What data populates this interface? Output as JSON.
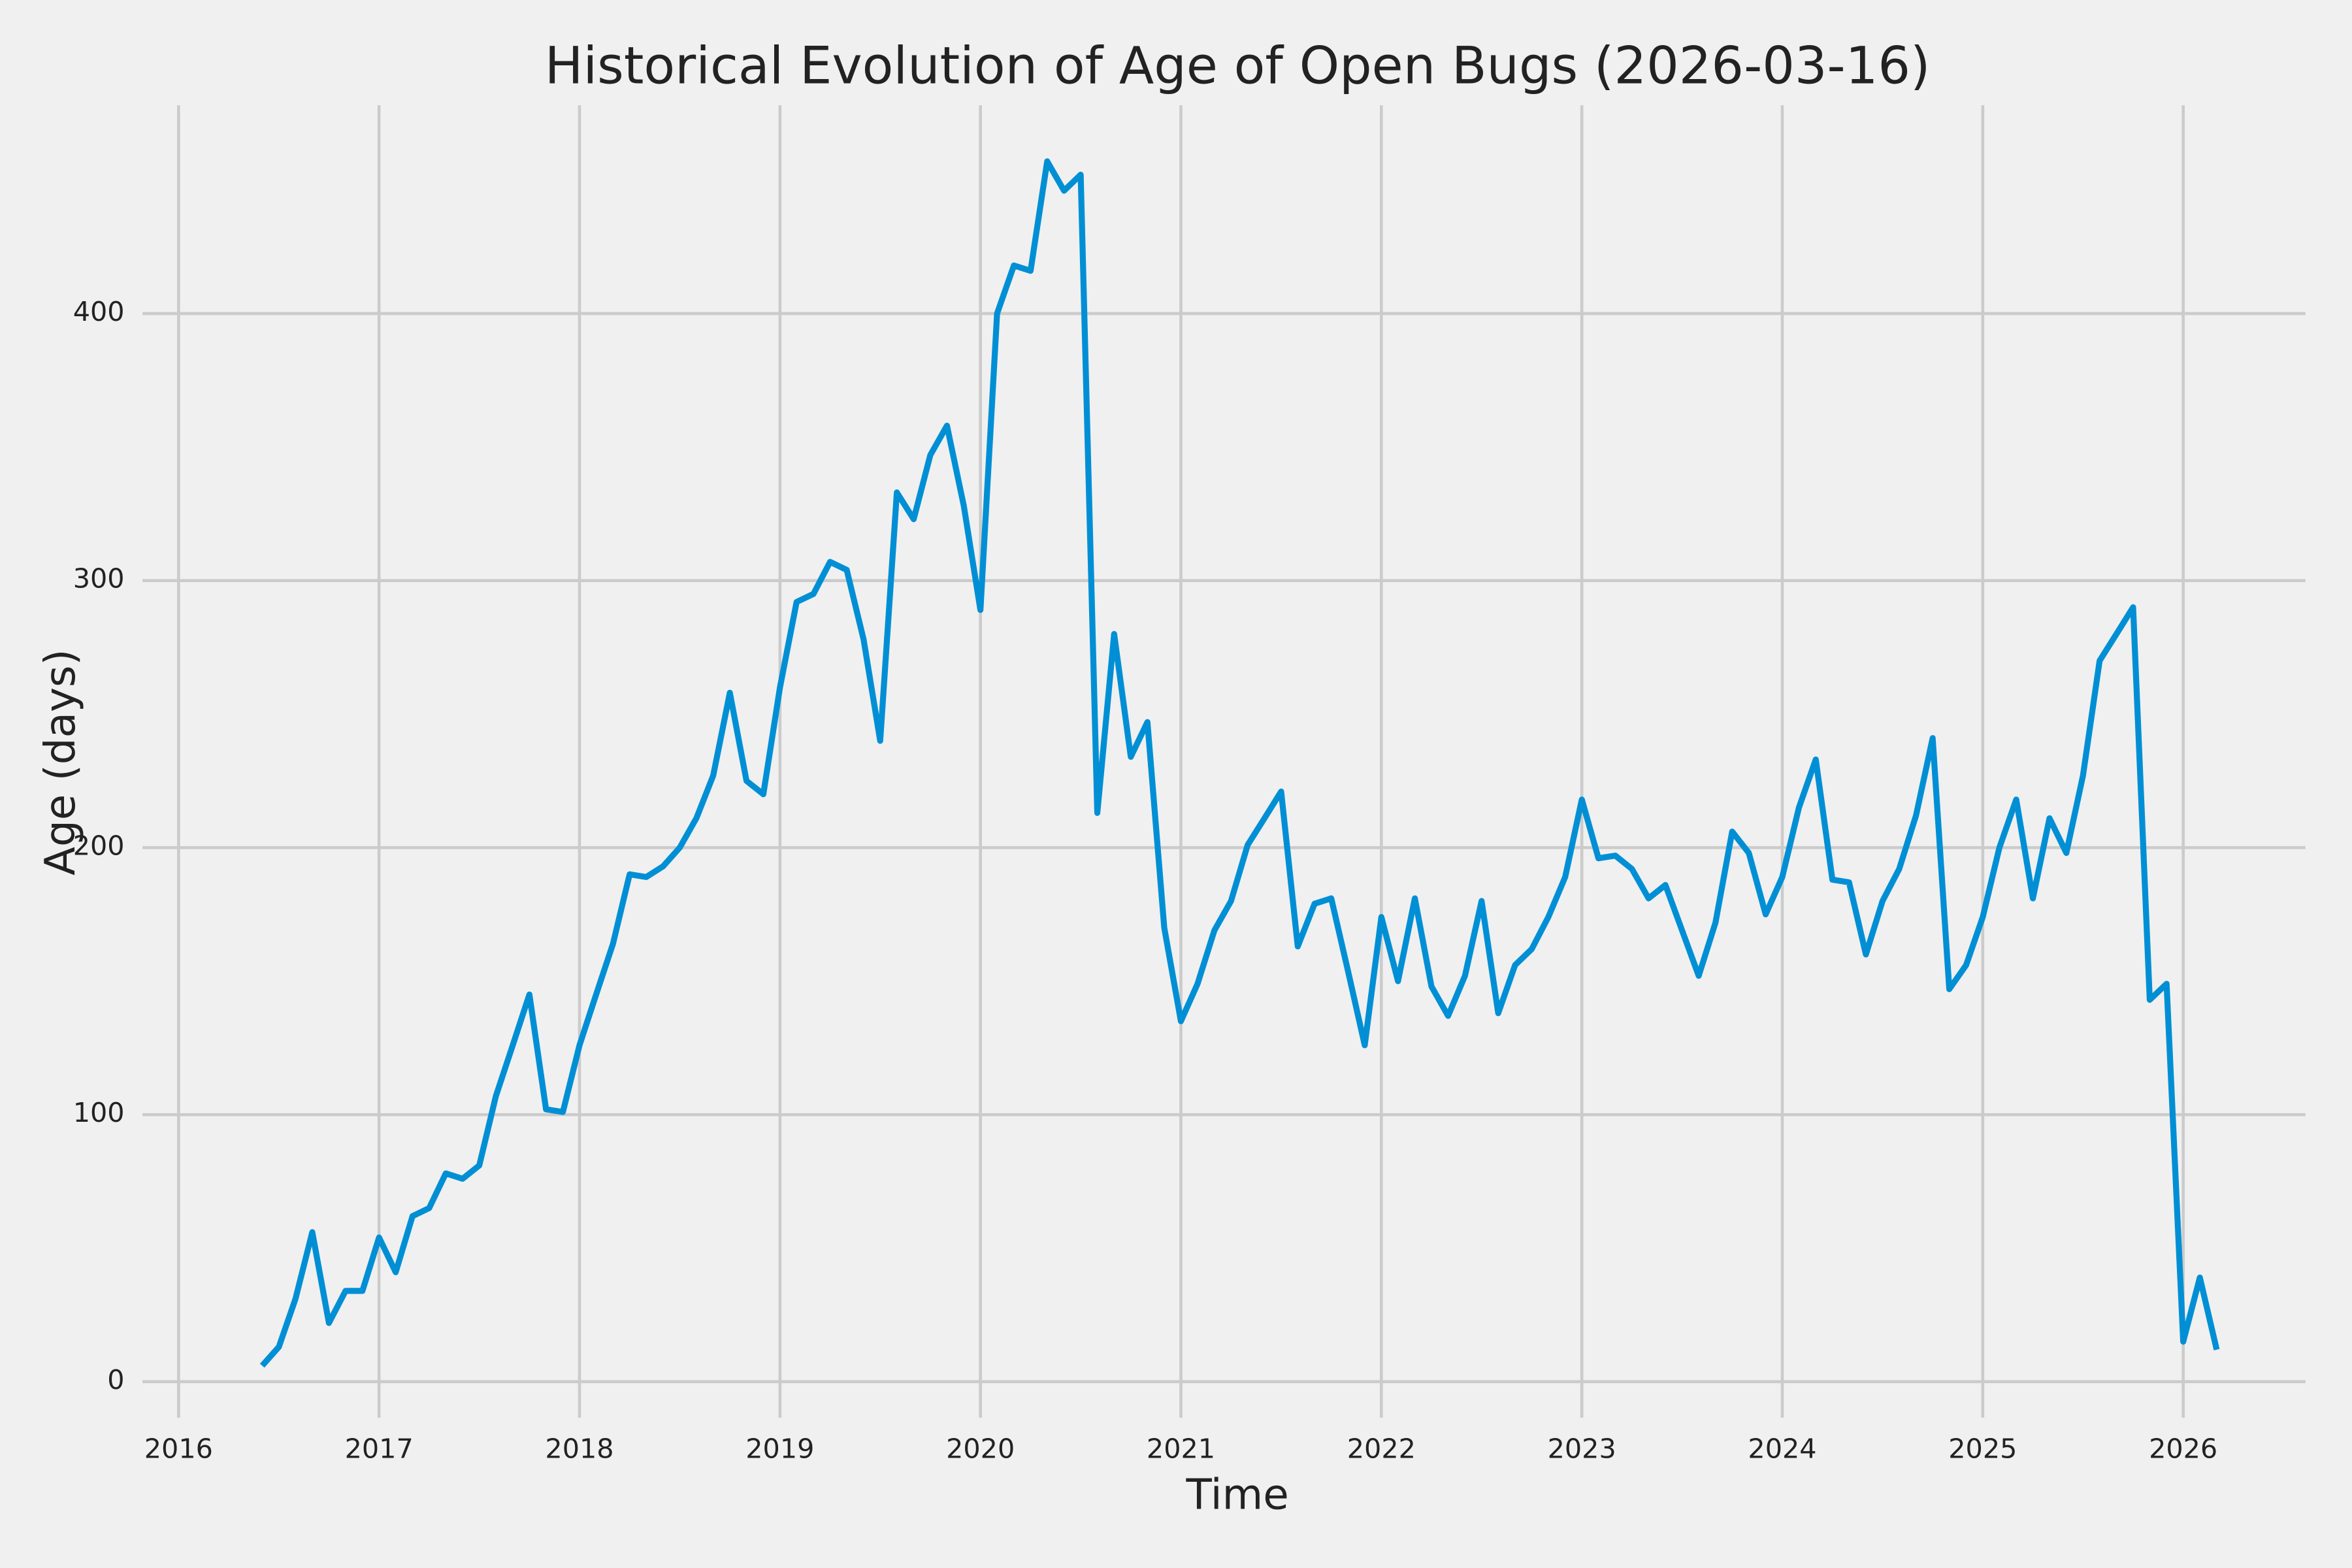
{
  "chart_data": {
    "type": "line",
    "title": "Historical Evolution of Age of Open Bugs (2026-03-16)",
    "x_label": "Time",
    "y_label": "Age (days)",
    "x": [
      2016.417,
      2016.5,
      2016.583,
      2016.667,
      2016.75,
      2016.833,
      2016.917,
      2017,
      2017.083,
      2017.167,
      2017.25,
      2017.333,
      2017.417,
      2017.5,
      2017.583,
      2017.667,
      2017.75,
      2017.833,
      2017.917,
      2018,
      2018.083,
      2018.167,
      2018.25,
      2018.333,
      2018.417,
      2018.5,
      2018.583,
      2018.667,
      2018.75,
      2018.833,
      2018.917,
      2019,
      2019.083,
      2019.167,
      2019.25,
      2019.333,
      2019.417,
      2019.5,
      2019.583,
      2019.667,
      2019.75,
      2019.833,
      2019.917,
      2020,
      2020.083,
      2020.167,
      2020.25,
      2020.333,
      2020.417,
      2020.5,
      2020.583,
      2020.667,
      2020.75,
      2020.833,
      2020.917,
      2021,
      2021.083,
      2021.167,
      2021.25,
      2021.333,
      2021.417,
      2021.5,
      2021.583,
      2021.667,
      2021.75,
      2021.833,
      2021.917,
      2022,
      2022.083,
      2022.167,
      2022.25,
      2022.333,
      2022.417,
      2022.5,
      2022.583,
      2022.667,
      2022.75,
      2022.833,
      2022.917,
      2023,
      2023.083,
      2023.167,
      2023.25,
      2023.333,
      2023.417,
      2023.5,
      2023.583,
      2023.667,
      2023.75,
      2023.833,
      2023.917,
      2024,
      2024.083,
      2024.167,
      2024.25,
      2024.333,
      2024.417,
      2024.5,
      2024.583,
      2024.667,
      2024.75,
      2024.833,
      2024.917,
      2025,
      2025.083,
      2025.167,
      2025.25,
      2025.333,
      2025.417,
      2025.5,
      2025.583,
      2025.667,
      2025.75,
      2025.833,
      2025.917,
      2026,
      2026.083,
      2026.167
    ],
    "series": [
      {
        "color": "#008fd5",
        "values": [
          6,
          13,
          31,
          56,
          22,
          34,
          34,
          54,
          41,
          62,
          65,
          78,
          76,
          81,
          107,
          126,
          145,
          102,
          101,
          126,
          145,
          164,
          190,
          189,
          193,
          200,
          211,
          227,
          258,
          225,
          220,
          260,
          292,
          295,
          307,
          304,
          278,
          240,
          333,
          323,
          347,
          358,
          328,
          289,
          400,
          418,
          416,
          457,
          446,
          452,
          213,
          280,
          234,
          247,
          170,
          135,
          149,
          169,
          180,
          201,
          211,
          221,
          163,
          179,
          181,
          154,
          126,
          174,
          150,
          181,
          148,
          137,
          152,
          180,
          138,
          156,
          162,
          174,
          189,
          218,
          196,
          197,
          192,
          181,
          186,
          169,
          152,
          172,
          206,
          198,
          175,
          189,
          215,
          233,
          188,
          187,
          160,
          180,
          192,
          212,
          241,
          147,
          156,
          174,
          200,
          218,
          181,
          211,
          198,
          227,
          270,
          280,
          290,
          143,
          149,
          15,
          39,
          12
        ]
      }
    ],
    "xlim": [
      2015.82,
      2026.61
    ],
    "xticks": [
      2016,
      2017,
      2018,
      2019,
      2020,
      2021,
      2022,
      2023,
      2024,
      2025,
      2026
    ],
    "ylim": [
      -13.5,
      478
    ],
    "yticks": [
      0,
      100,
      200,
      300,
      400
    ],
    "grid": true
  }
}
